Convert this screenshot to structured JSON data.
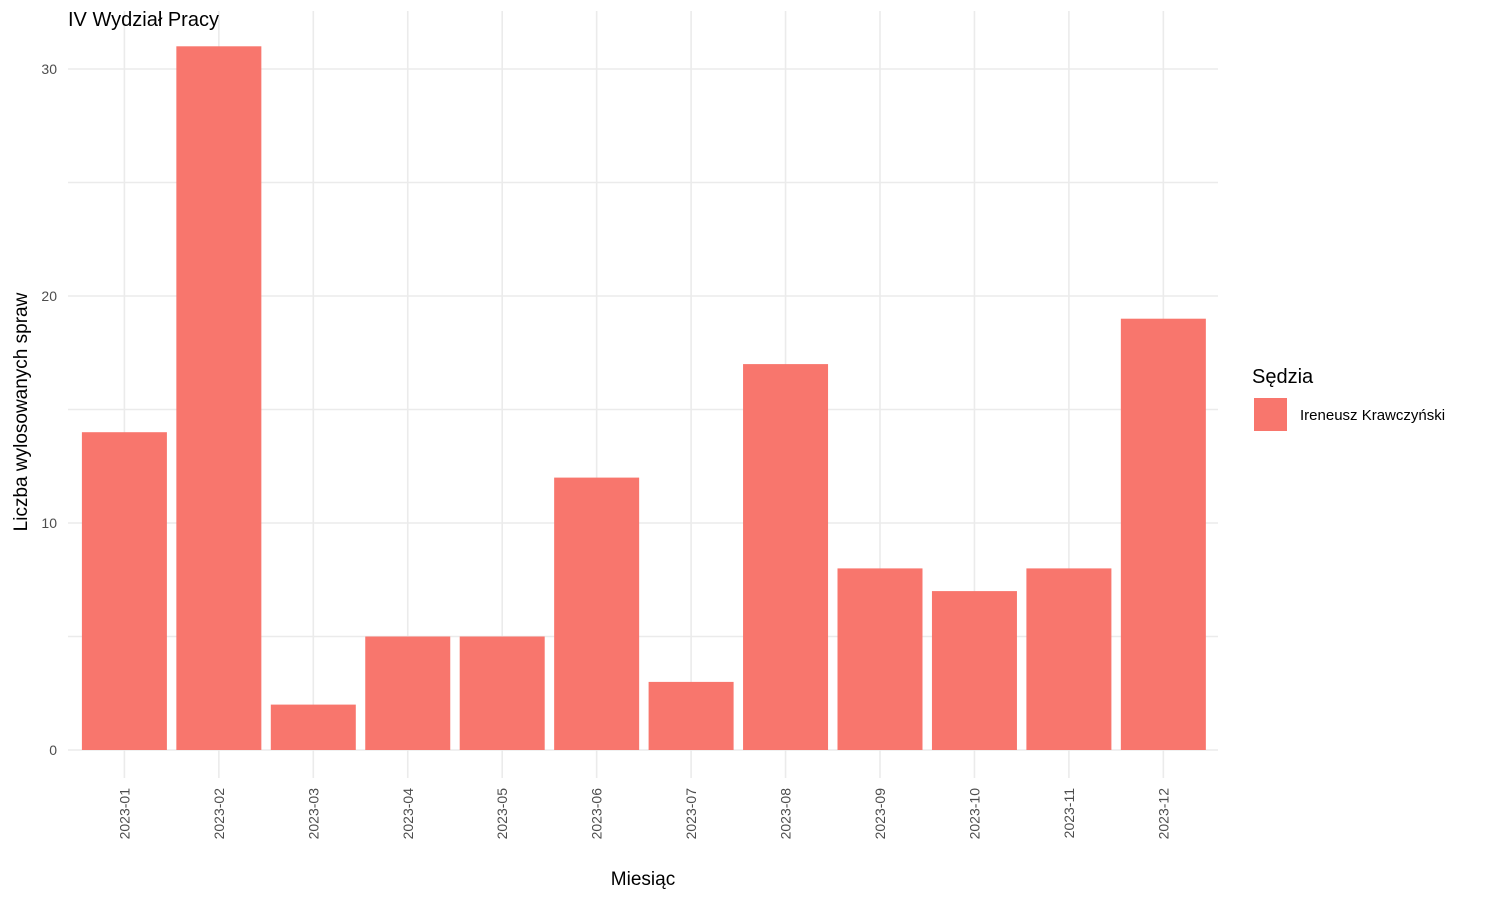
{
  "chart_data": {
    "type": "bar",
    "title": "IV Wydział Pracy",
    "xlabel": "Miesiąc",
    "ylabel": "Liczba wylosowanych spraw",
    "categories": [
      "2023-01",
      "2023-02",
      "2023-03",
      "2023-04",
      "2023-05",
      "2023-06",
      "2023-07",
      "2023-08",
      "2023-09",
      "2023-10",
      "2023-11",
      "2023-12"
    ],
    "series": [
      {
        "name": "Ireneusz Krawczyński",
        "color": "#f8766d",
        "values": [
          14,
          31,
          2,
          5,
          5,
          12,
          3,
          17,
          8,
          7,
          8,
          19
        ]
      }
    ],
    "ylim": [
      0,
      32
    ],
    "yticks": [
      0,
      10,
      20,
      30
    ],
    "grid": true,
    "legend": {
      "title": "Sędzia",
      "position": "right"
    }
  }
}
